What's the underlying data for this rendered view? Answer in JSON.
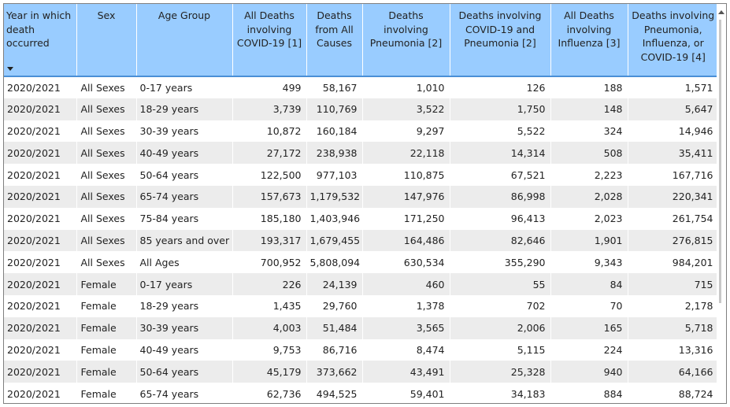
{
  "headers": [
    {
      "lines": [
        "Year in which",
        "death",
        "occurred"
      ],
      "align": "left",
      "sortable": true
    },
    {
      "lines": [
        "Sex"
      ],
      "align": "center"
    },
    {
      "lines": [
        "Age Group"
      ],
      "align": "center"
    },
    {
      "lines": [
        "All Deaths",
        "involving",
        "COVID-19 [1]"
      ],
      "align": "center"
    },
    {
      "lines": [
        "Deaths",
        "from All",
        "Causes"
      ],
      "align": "center"
    },
    {
      "lines": [
        "Deaths involving",
        "Pneumonia [2]"
      ],
      "align": "center"
    },
    {
      "lines": [
        "Deaths involving",
        "COVID-19 and",
        "Pneumonia [2]"
      ],
      "align": "center"
    },
    {
      "lines": [
        "All Deaths",
        "involving",
        "Influenza [3]"
      ],
      "align": "center"
    },
    {
      "lines": [
        "Deaths involving",
        "Pneumonia,",
        "Influenza, or",
        "COVID-19 [4]"
      ],
      "align": "center"
    }
  ],
  "rows": [
    [
      "2020/2021",
      "All Sexes",
      "0-17 years",
      "499",
      "58,167",
      "1,010",
      "126",
      "188",
      "1,571"
    ],
    [
      "2020/2021",
      "All Sexes",
      "18-29 years",
      "3,739",
      "110,769",
      "3,522",
      "1,750",
      "148",
      "5,647"
    ],
    [
      "2020/2021",
      "All Sexes",
      "30-39 years",
      "10,872",
      "160,184",
      "9,297",
      "5,522",
      "324",
      "14,946"
    ],
    [
      "2020/2021",
      "All Sexes",
      "40-49 years",
      "27,172",
      "238,938",
      "22,118",
      "14,314",
      "508",
      "35,411"
    ],
    [
      "2020/2021",
      "All Sexes",
      "50-64 years",
      "122,500",
      "977,103",
      "110,875",
      "67,521",
      "2,223",
      "167,716"
    ],
    [
      "2020/2021",
      "All Sexes",
      "65-74 years",
      "157,673",
      "1,179,532",
      "147,976",
      "86,998",
      "2,028",
      "220,341"
    ],
    [
      "2020/2021",
      "All Sexes",
      "75-84 years",
      "185,180",
      "1,403,946",
      "171,250",
      "96,413",
      "2,023",
      "261,754"
    ],
    [
      "2020/2021",
      "All Sexes",
      "85 years and over",
      "193,317",
      "1,679,455",
      "164,486",
      "82,646",
      "1,901",
      "276,815"
    ],
    [
      "2020/2021",
      "All Sexes",
      "All Ages",
      "700,952",
      "5,808,094",
      "630,534",
      "355,290",
      "9,343",
      "984,201"
    ],
    [
      "2020/2021",
      "Female",
      "0-17 years",
      "226",
      "24,139",
      "460",
      "55",
      "84",
      "715"
    ],
    [
      "2020/2021",
      "Female",
      "18-29 years",
      "1,435",
      "29,760",
      "1,378",
      "702",
      "70",
      "2,178"
    ],
    [
      "2020/2021",
      "Female",
      "30-39 years",
      "4,003",
      "51,484",
      "3,565",
      "2,006",
      "165",
      "5,718"
    ],
    [
      "2020/2021",
      "Female",
      "40-49 years",
      "9,753",
      "86,716",
      "8,474",
      "5,115",
      "224",
      "13,316"
    ],
    [
      "2020/2021",
      "Female",
      "50-64 years",
      "45,179",
      "373,662",
      "43,491",
      "25,328",
      "940",
      "64,166"
    ],
    [
      "2020/2021",
      "Female",
      "65-74 years",
      "62,736",
      "494,525",
      "59,401",
      "34,183",
      "884",
      "88,724"
    ]
  ],
  "colors": {
    "header_bg": "#99ccff",
    "row_alt_bg": "#ececec",
    "header_rule": "#4a8fd6"
  },
  "icons": {
    "sort": "sort-down-icon",
    "scroll_up": "chevron-up-icon"
  }
}
